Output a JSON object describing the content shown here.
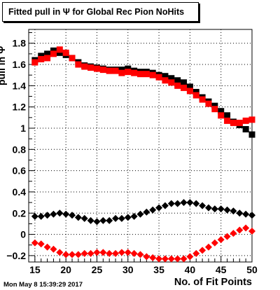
{
  "title": "Fitted pull in Ψ  for Global Rec Pion NoHits",
  "timestamp": "Mon May  8 15:39:29 2017",
  "chart_data": {
    "type": "scatter",
    "title": "Fitted pull in Ψ  for Global Rec Pion NoHits",
    "xlabel": "No. of Fit Points",
    "ylabel": "pull in Ψ",
    "xlim": [
      14,
      50
    ],
    "ylim": [
      -0.26,
      1.93
    ],
    "grid": true,
    "x_ticks": [
      15,
      20,
      25,
      30,
      35,
      40,
      45,
      50
    ],
    "y_ticks": [
      -0.2,
      0,
      0.2,
      0.4,
      0.6,
      0.8,
      1,
      1.2,
      1.4,
      1.6,
      1.8
    ],
    "y_tick_labels": [
      "−0.2",
      "0",
      "0.2",
      "0.4",
      "0.6",
      "0.8",
      "1",
      "1.2",
      "1.4",
      "1.6",
      "1.8"
    ],
    "x": [
      15,
      16,
      17,
      18,
      19,
      20,
      21,
      22,
      23,
      24,
      25,
      26,
      27,
      28,
      29,
      30,
      31,
      32,
      33,
      34,
      35,
      36,
      37,
      38,
      39,
      40,
      41,
      42,
      43,
      44,
      45,
      46,
      47,
      48,
      49,
      50
    ],
    "series": [
      {
        "marker": "square",
        "color": "#000000",
        "values": [
          1.64,
          1.68,
          1.7,
          1.73,
          1.71,
          1.69,
          1.66,
          1.62,
          1.59,
          1.58,
          1.57,
          1.56,
          1.55,
          1.55,
          1.55,
          1.56,
          1.54,
          1.53,
          1.53,
          1.52,
          1.5,
          1.49,
          1.47,
          1.45,
          1.43,
          1.39,
          1.34,
          1.29,
          1.25,
          1.21,
          1.16,
          1.12,
          1.06,
          1.03,
          0.99,
          0.94
        ]
      },
      {
        "marker": "square",
        "color": "#ff0000",
        "values": [
          1.62,
          1.65,
          1.66,
          1.7,
          1.74,
          1.71,
          1.66,
          1.6,
          1.58,
          1.57,
          1.56,
          1.55,
          1.54,
          1.54,
          1.52,
          1.53,
          1.52,
          1.51,
          1.51,
          1.5,
          1.48,
          1.45,
          1.43,
          1.4,
          1.38,
          1.35,
          1.31,
          1.27,
          1.23,
          1.18,
          1.12,
          1.07,
          1.05,
          1.05,
          1.07,
          1.08
        ]
      },
      {
        "marker": "diamond",
        "color": "#000000",
        "values": [
          0.17,
          0.17,
          0.18,
          0.19,
          0.2,
          0.19,
          0.18,
          0.16,
          0.15,
          0.13,
          0.12,
          0.13,
          0.13,
          0.15,
          0.15,
          0.16,
          0.17,
          0.19,
          0.21,
          0.23,
          0.25,
          0.27,
          0.29,
          0.29,
          0.3,
          0.3,
          0.29,
          0.27,
          0.25,
          0.24,
          0.24,
          0.23,
          0.22,
          0.2,
          0.19,
          0.18
        ]
      },
      {
        "marker": "diamond",
        "color": "#ff0000",
        "values": [
          -0.08,
          -0.09,
          -0.12,
          -0.14,
          -0.17,
          -0.19,
          -0.19,
          -0.19,
          -0.18,
          -0.18,
          -0.17,
          -0.17,
          -0.18,
          -0.18,
          -0.17,
          -0.17,
          -0.18,
          -0.19,
          -0.21,
          -0.22,
          -0.23,
          -0.23,
          -0.23,
          -0.23,
          -0.23,
          -0.21,
          -0.18,
          -0.15,
          -0.12,
          -0.08,
          -0.05,
          -0.02,
          0.01,
          0.04,
          0.06,
          0.03
        ]
      }
    ]
  }
}
